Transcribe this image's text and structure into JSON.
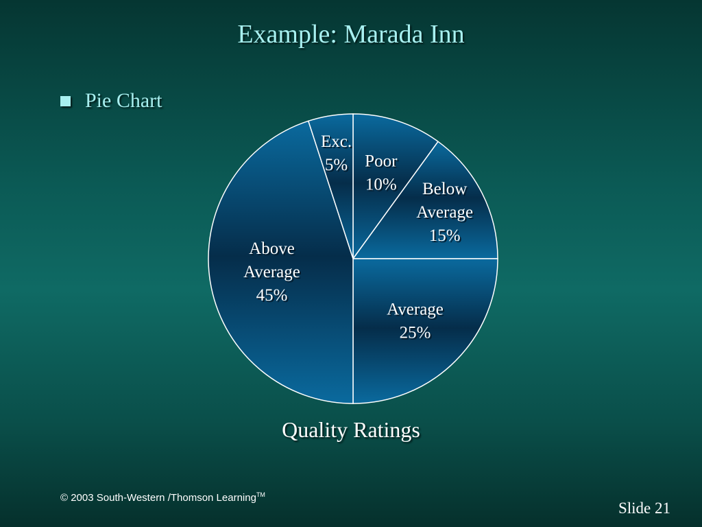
{
  "slide": {
    "title": "Example:  Marada Inn",
    "bullet": "Pie Chart",
    "copyright": "© 2003  South-Western /Thomson Learning",
    "trademark": "TM",
    "slide_number": "Slide 21"
  },
  "colors": {
    "slice_fill_dark": "#052d4a",
    "slice_fill_light": "#0a6a9e",
    "slice_stroke": "#ffffff",
    "accent_text": "#a8f0f0"
  },
  "chart_data": {
    "type": "pie",
    "title": "Quality Ratings",
    "start": "12 o'clock",
    "direction": "clockwise",
    "slices": [
      {
        "name": "Poor",
        "value": 10,
        "label": [
          "Poor",
          "10%"
        ]
      },
      {
        "name": "Below Average",
        "value": 15,
        "label": [
          "Below",
          "Average",
          "15%"
        ]
      },
      {
        "name": "Average",
        "value": 25,
        "label": [
          "Average",
          "25%"
        ]
      },
      {
        "name": "Above Average",
        "value": 45,
        "label": [
          "Above",
          "Average",
          "45%"
        ]
      },
      {
        "name": "Excellent",
        "value": 5,
        "label": [
          "Exc.",
          "5%"
        ]
      }
    ]
  }
}
